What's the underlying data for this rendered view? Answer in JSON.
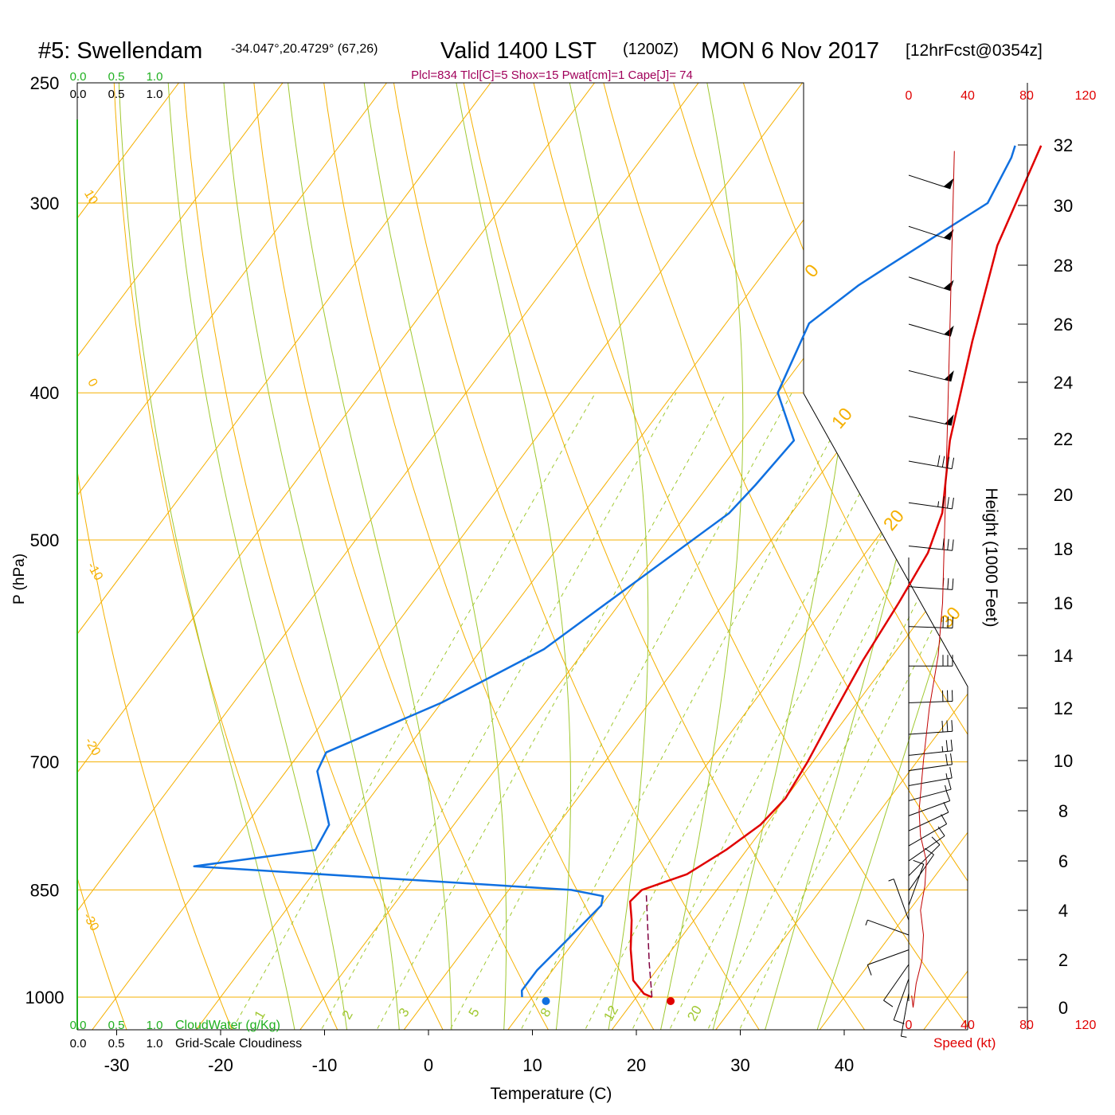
{
  "header": {
    "station": "#5: Swellendam",
    "coords": "-34.047°,20.4729° (67,26)",
    "valid": "Valid 1400 LST",
    "zulu": "(1200Z)",
    "date": "MON 6 Nov 2017",
    "forecast": "[12hrFcst@0354z]",
    "indices": "Plcl=834 Tlcl[C]=5 Shox=15 Pwat[cm]=1 Cape[J]= 74"
  },
  "chart_data": {
    "type": "line",
    "subtype": "skew-t log-p",
    "xlabel": "Temperature (C)",
    "ylabel": "P (hPa)",
    "y2label": "Height (1000 Feet)",
    "x_ticks": [
      -30,
      -20,
      -10,
      0,
      10,
      20,
      30,
      40
    ],
    "y_ticks": [
      250,
      300,
      400,
      500,
      700,
      850,
      1000
    ],
    "y_scale": "log",
    "height_ticks": [
      0,
      2,
      4,
      6,
      8,
      10,
      12,
      14,
      16,
      18,
      20,
      22,
      24,
      26,
      28,
      30,
      32
    ],
    "speed_ticks": [
      "0",
      "40",
      "80",
      "120"
    ],
    "speed_label": "Speed (kt)",
    "cloud_scale_labels": [
      "0.0",
      "0.5",
      "1.0"
    ],
    "cloudwater_label": "CloudWater (g/Kg)",
    "cloudiness_label": "Grid-Scale Cloudiness",
    "dry_adiabat_labels": [
      "10",
      "0",
      "-10",
      "-20",
      "-30"
    ],
    "moist_adiabat_labels": [
      "0",
      "10",
      "20",
      "30"
    ],
    "mixing_ratio_labels": [
      "1",
      "2",
      "3",
      "5",
      "8",
      "12",
      "20"
    ],
    "series": [
      {
        "color": "#e00000",
        "x": [
          21.5,
          20.5,
          18.5,
          16,
          14,
          12.5,
          12.8,
          16,
          18,
          19.5,
          20,
          19.5,
          18.5,
          17.5,
          16.8,
          16,
          14.5,
          10,
          5,
          0.5,
          -2.5
        ],
        "y": [
          1000,
          995,
          975,
          930,
          890,
          865,
          850,
          830,
          800,
          770,
          740,
          700,
          650,
          600,
          550,
          510,
          480,
          430,
          370,
          320,
          275
        ]
      },
      {
        "color": "#1070e0",
        "x": [
          9,
          8.5,
          8.5,
          9.5,
          10,
          9.5,
          6,
          -32,
          -21.5,
          -22,
          -27,
          -27.5,
          -20,
          -14,
          -6,
          -5.5,
          -5,
          -10,
          -12,
          -10,
          -8.5,
          -3.5,
          -4.5,
          -5
        ],
        "y": [
          1000,
          990,
          960,
          900,
          870,
          858,
          850,
          820,
          800,
          770,
          710,
          690,
          640,
          590,
          480,
          460,
          430,
          400,
          360,
          340,
          330,
          300,
          280,
          275
        ]
      },
      {
        "color": "#800040",
        "x": [
          21.5,
          18.8,
          13.5
        ],
        "y": [
          1000,
          950,
          855
        ]
      }
    ],
    "surface_temperature": 23.3,
    "surface_dewpoint": 11.3,
    "wind_speed_profile": {
      "height_kft": [
        -0.5,
        0,
        1,
        2,
        3,
        4,
        5,
        6,
        7,
        8,
        10,
        12,
        14,
        16,
        20,
        24,
        28,
        31.8
      ],
      "speed_kt": [
        2,
        3,
        5,
        9,
        10,
        8,
        11,
        12,
        8,
        7,
        10,
        14,
        20,
        23,
        25,
        27,
        29,
        31
      ]
    },
    "wind_barbs": {
      "height_kft": [
        0.6,
        1.2,
        1.8,
        2.4,
        3,
        3.6,
        4.2,
        4.8,
        5.4,
        6,
        6.6,
        7.2,
        7.8,
        8.4,
        9,
        9.6,
        10.2,
        11,
        12.2,
        13.6,
        15.1,
        16.6,
        18.1,
        19.7,
        21.2,
        22.8,
        24.4,
        26,
        27.6,
        29.3,
        31
      ],
      "direction_deg": [
        10,
        20,
        35,
        70,
        110,
        160,
        200,
        215,
        225,
        235,
        240,
        245,
        250,
        255,
        260,
        262,
        264,
        266,
        268,
        270,
        272,
        274,
        276,
        278,
        280,
        282,
        284,
        286,
        288,
        288,
        288
      ],
      "speed_kt": [
        8,
        10,
        12,
        10,
        8,
        8,
        10,
        12,
        14,
        12,
        10,
        12,
        14,
        16,
        18,
        20,
        25,
        30,
        30,
        30,
        30,
        30,
        30,
        35,
        40,
        50,
        50,
        50,
        50,
        50,
        50
      ]
    }
  }
}
